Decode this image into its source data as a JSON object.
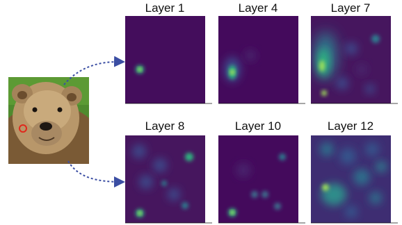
{
  "colors": {
    "map_background": "#440a5c",
    "hot_low": "#2f7c8f",
    "hot_mid": "#2fb680",
    "hot_high": "#d9f04a",
    "arrow": "#3b4ea3",
    "query_marker": "#e0281c"
  },
  "source_image": {
    "icon": "brown-bear-photo"
  },
  "panels": [
    {
      "label": "Layer 1"
    },
    {
      "label": "Layer 4"
    },
    {
      "label": "Layer 7"
    },
    {
      "label": "Layer 8"
    },
    {
      "label": "Layer 10"
    },
    {
      "label": "Layer 12"
    }
  ]
}
